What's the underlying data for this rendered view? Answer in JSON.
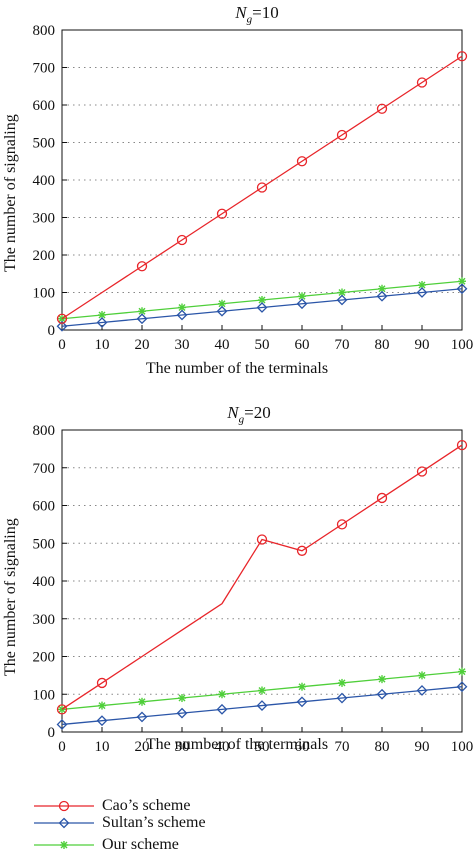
{
  "colors": {
    "cao": "#e8252a",
    "sultan": "#2b56a8",
    "our": "#4fcf3a",
    "axis": "#111111",
    "grid": "#888888"
  },
  "legend": {
    "cao": "Cao’s scheme",
    "sultan": "Sultan’s scheme",
    "our": "Our scheme"
  },
  "chart_data": [
    {
      "type": "line",
      "title_var": "N",
      "title_sub": "g",
      "title_rest": "=10",
      "xlabel": "The number of the terminals",
      "ylabel": "The number of signaling",
      "xlim": [
        0,
        100
      ],
      "ylim": [
        0,
        800
      ],
      "xticks": [
        0,
        10,
        20,
        30,
        40,
        50,
        60,
        70,
        80,
        90,
        100
      ],
      "yticks": [
        0,
        100,
        200,
        300,
        400,
        500,
        600,
        700,
        800
      ],
      "grid": "dotted horizontal",
      "x": [
        0,
        10,
        20,
        30,
        40,
        50,
        60,
        70,
        80,
        90,
        100
      ],
      "series": [
        {
          "key": "cao",
          "name": "Cao’s scheme",
          "marker": "circle",
          "values": [
            30,
            100,
            170,
            240,
            310,
            380,
            450,
            520,
            590,
            660,
            730
          ]
        },
        {
          "key": "sultan",
          "name": "Sultan’s scheme",
          "marker": "diamond",
          "values": [
            10,
            20,
            30,
            40,
            50,
            60,
            70,
            80,
            90,
            100,
            110
          ]
        },
        {
          "key": "our",
          "name": "Our scheme",
          "marker": "star",
          "values": [
            30,
            40,
            50,
            60,
            70,
            80,
            90,
            100,
            110,
            120,
            130
          ]
        }
      ],
      "markers_x": {
        "cao": [
          0,
          20,
          30,
          40,
          50,
          60,
          70,
          80,
          90,
          100
        ]
      }
    },
    {
      "type": "line",
      "title_var": "N",
      "title_sub": "g",
      "title_rest": "=20",
      "xlabel": "The number of the terminals",
      "ylabel": "The number of signaling",
      "xlim": [
        0,
        100
      ],
      "ylim": [
        0,
        800
      ],
      "xticks": [
        0,
        10,
        20,
        30,
        40,
        50,
        60,
        70,
        80,
        90,
        100
      ],
      "yticks": [
        0,
        100,
        200,
        300,
        400,
        500,
        600,
        700,
        800
      ],
      "grid": "dotted horizontal",
      "x": [
        0,
        10,
        20,
        30,
        40,
        50,
        60,
        70,
        80,
        90,
        100
      ],
      "series": [
        {
          "key": "cao",
          "name": "Cao’s scheme",
          "marker": "circle",
          "values": [
            60,
            130,
            200,
            270,
            340,
            510,
            480,
            550,
            620,
            690,
            760
          ]
        },
        {
          "key": "sultan",
          "name": "Sultan’s scheme",
          "marker": "diamond",
          "values": [
            20,
            30,
            40,
            50,
            60,
            70,
            80,
            90,
            100,
            110,
            120
          ]
        },
        {
          "key": "our",
          "name": "Our scheme",
          "marker": "star",
          "values": [
            60,
            70,
            80,
            90,
            100,
            110,
            120,
            130,
            140,
            150,
            160
          ]
        }
      ],
      "markers_x": {
        "cao": [
          0,
          10,
          50,
          60,
          70,
          80,
          90,
          100
        ]
      }
    }
  ]
}
